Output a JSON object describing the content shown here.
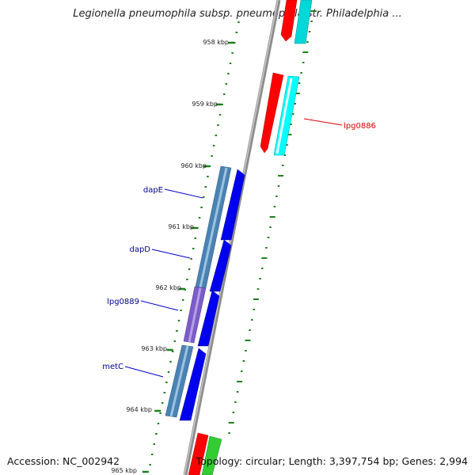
{
  "title": "Legionella pneumophila subsp. pneumophila str. Philadelphia ...",
  "accession": "Accession: NC_002942",
  "summary": "Topology: circular; Length: 3,397,754 bp; Genes: 2,994",
  "ticks": [
    {
      "label": "958 kbp"
    },
    {
      "label": "959 kbp"
    },
    {
      "label": "960 kbp"
    },
    {
      "label": "961 kbp"
    },
    {
      "label": "962 kbp"
    },
    {
      "label": "963 kbp"
    },
    {
      "label": "964 kbp"
    },
    {
      "label": "965 kbp"
    }
  ],
  "gene_labels": [
    {
      "name": "lpg0886",
      "color": "#dd0000"
    },
    {
      "name": "dapE",
      "color": "#00008b"
    },
    {
      "name": "dapD",
      "color": "#00008b"
    },
    {
      "name": "lpg0889",
      "color": "#00008b"
    },
    {
      "name": "metC",
      "color": "#00008b"
    }
  ],
  "colors": {
    "backbone": "#8c8c8c",
    "tick": "#1e7f1e",
    "cds_forward": "#ff0000",
    "orf_forward": "#00ffff",
    "cds_reverse": "#0000ee",
    "orf_reverse": "#4a82b4",
    "orf_reverse_alt": "#7b5cc8",
    "other": "#33cc33"
  }
}
